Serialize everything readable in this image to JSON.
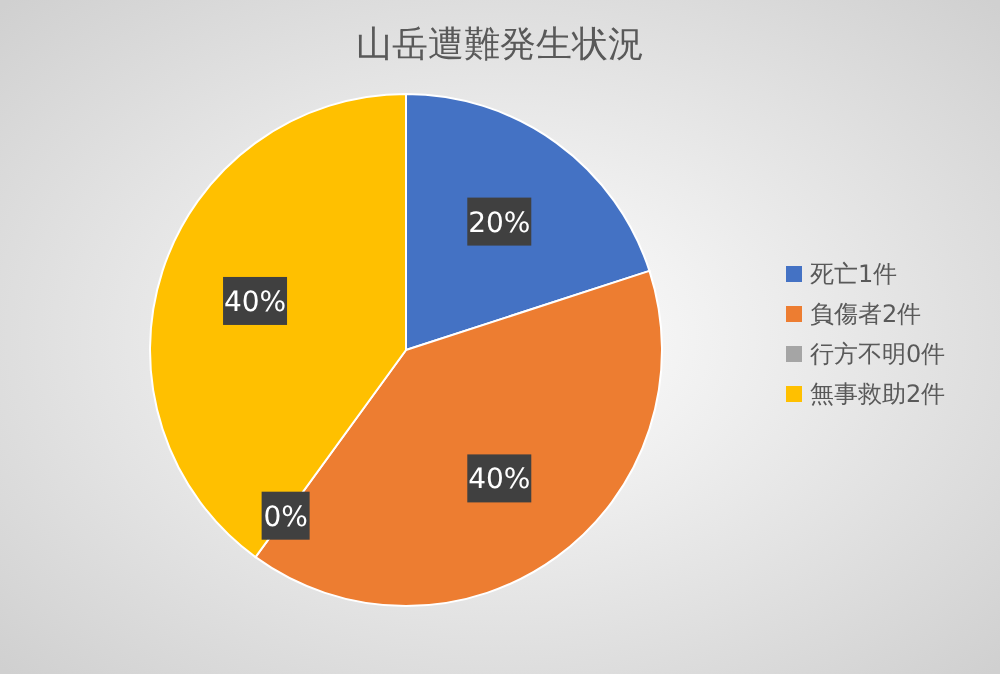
{
  "chart_data": {
    "type": "pie",
    "title": "山岳遭難発生状況",
    "categories": [
      "死亡1件",
      "負傷者2件",
      "行方不明0件",
      "無事救助2件"
    ],
    "values": [
      20,
      40,
      0,
      40
    ],
    "colors": [
      "#4472c4",
      "#ed7d31",
      "#a5a5a5",
      "#ffc000"
    ],
    "value_labels": [
      "20%",
      "40%",
      "0%",
      "40%"
    ],
    "legend": "right"
  }
}
